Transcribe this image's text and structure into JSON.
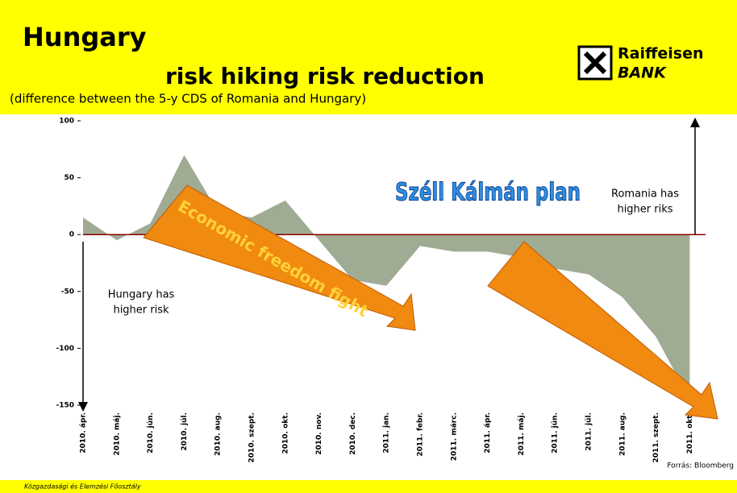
{
  "header": {
    "title": "Hungary",
    "headline": "risk hiking risk reduction",
    "subtitle": "(difference between the 5-y CDS of Romania and Hungary)",
    "logo": [
      "Raiffeisen",
      "BANK"
    ]
  },
  "chart_data": {
    "type": "area",
    "color": "#8f9c80",
    "categories": [
      "2010. ápr.",
      "2010. máj.",
      "2010. jún.",
      "2010. júl.",
      "2010. aug.",
      "2010. szept.",
      "2010. okt.",
      "2010. nov.",
      "2010. dec.",
      "2011. jan.",
      "2011. febr.",
      "2011. márc.",
      "2011. ápr.",
      "2011. máj.",
      "2011. jún.",
      "2011. júl.",
      "2011. aug.",
      "2011. szept.",
      "2011. okt."
    ],
    "values": [
      15,
      -5,
      10,
      70,
      20,
      15,
      30,
      -5,
      -40,
      -45,
      -10,
      -15,
      -15,
      -20,
      -30,
      -35,
      -55,
      -90,
      -145
    ],
    "ylim": [
      -150,
      100
    ],
    "yticks": [
      -150,
      -100,
      -50,
      0,
      50,
      100
    ],
    "annotations": {
      "plan": "Széll Kálmán plan",
      "fight": "Economic freedom fight",
      "romania": [
        "Romania has",
        "higher riks"
      ],
      "hungary": [
        "Hungary has",
        "higher risk"
      ],
      "source": "Forrás: Bloomberg"
    }
  },
  "footer": "Közgazdasági és Elemzési Főosztály"
}
